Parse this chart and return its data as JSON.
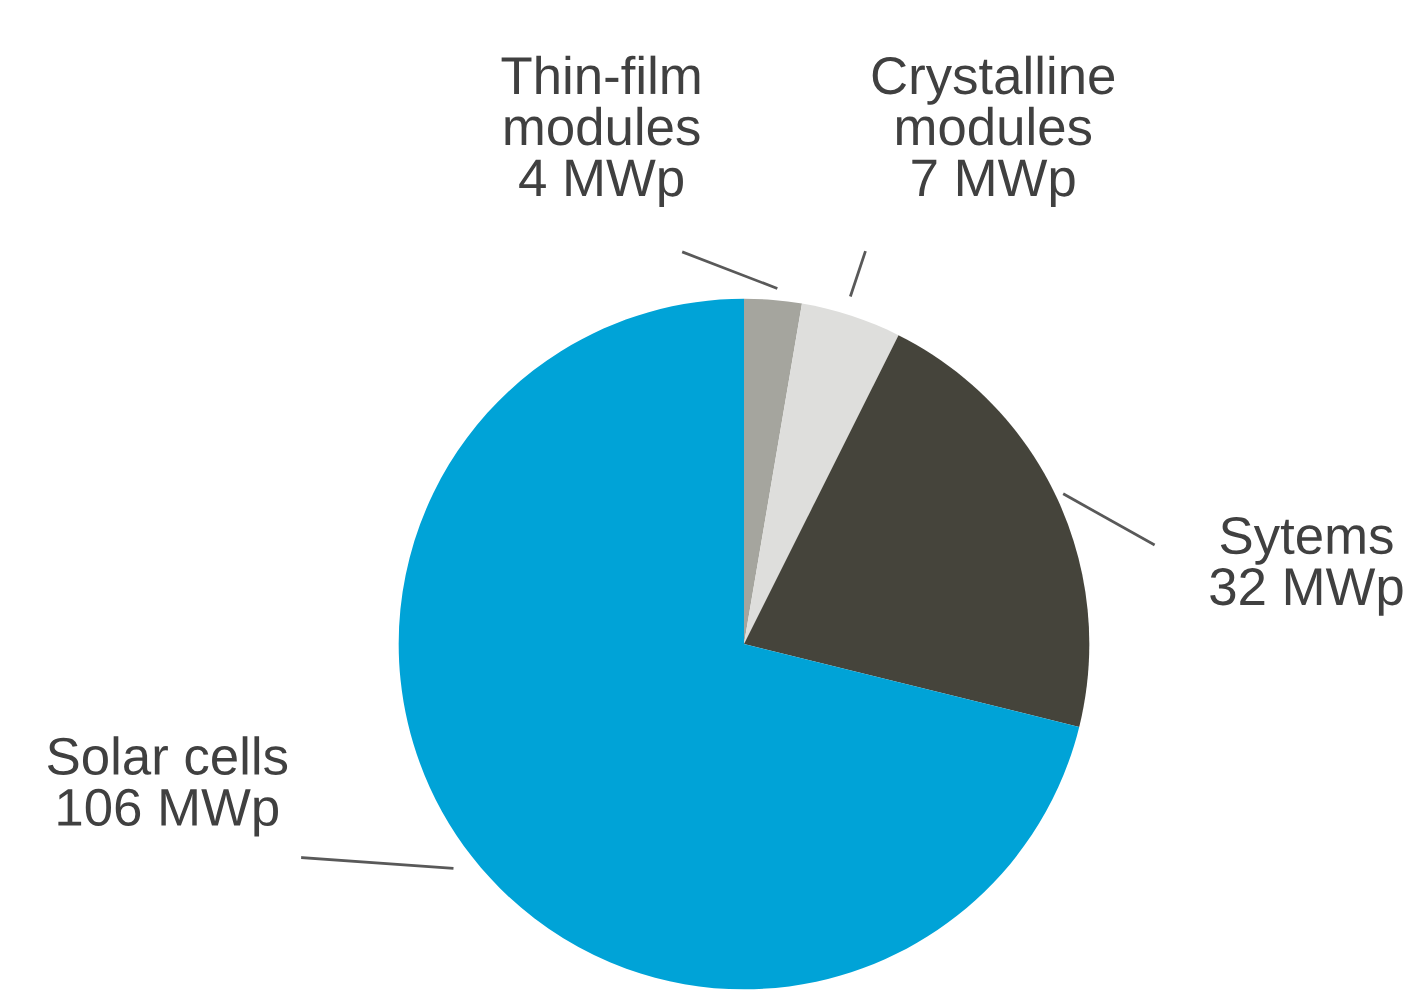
{
  "chart_data": {
    "type": "pie",
    "categories": [
      "Thin-film\nmodules",
      "Crystalline\nmodules",
      "Sytems",
      "Solar cells"
    ],
    "values": [
      4,
      7,
      32,
      106
    ],
    "value_labels": [
      "4 MWp",
      "7 MWp",
      "32 MWp",
      "106 MWp"
    ],
    "colors": [
      "#a5a59e",
      "#dededc",
      "#45443b",
      "#00a3d7"
    ],
    "legend": false
  }
}
